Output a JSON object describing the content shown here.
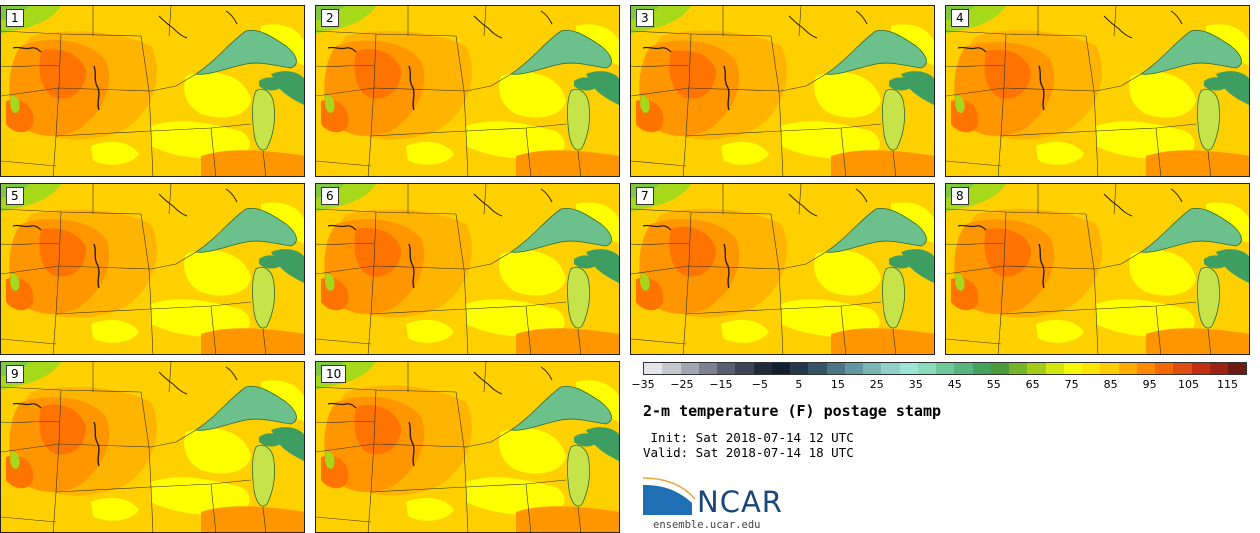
{
  "panels": [
    {
      "label": "1"
    },
    {
      "label": "2"
    },
    {
      "label": "3"
    },
    {
      "label": "4"
    },
    {
      "label": "5"
    },
    {
      "label": "6"
    },
    {
      "label": "7"
    },
    {
      "label": "8"
    },
    {
      "label": "9"
    },
    {
      "label": "10"
    }
  ],
  "colorbar": {
    "ticks": [
      "−35",
      "−25",
      "−15",
      "−5",
      "5",
      "15",
      "25",
      "35",
      "45",
      "55",
      "65",
      "75",
      "85",
      "95",
      "105",
      "115"
    ],
    "colors": [
      "#e6e6ea",
      "#c7c9d1",
      "#a2a6b3",
      "#7c8294",
      "#585f73",
      "#3c4457",
      "#1f2a3b",
      "#102031",
      "#24384c",
      "#355468",
      "#4b7688",
      "#6297a2",
      "#7bb5b6",
      "#93d0cb",
      "#9de3d8",
      "#88dcbc",
      "#6ec99a",
      "#55b77e",
      "#44a25f",
      "#4c9b3a",
      "#76b42a",
      "#a3cc17",
      "#d4e810",
      "#f7f70a",
      "#fde503",
      "#ffcc00",
      "#ffae00",
      "#fd8a00",
      "#f36a05",
      "#e04b10",
      "#c32f12",
      "#9d2212",
      "#6e1a10"
    ],
    "range": [
      -35,
      120
    ]
  },
  "title": "2-m temperature (F) postage stamp",
  "init": " Init: Sat 2018-07-14 12 UTC",
  "valid": "Valid: Sat 2018-07-14 18 UTC",
  "logo": {
    "text": "NCAR",
    "site": "ensemble.ucar.edu",
    "color": "#19477a"
  },
  "palette": {
    "yellow": "#ffff00",
    "gold": "#ffd000",
    "amber": "#ffb400",
    "orange": "#ff9600",
    "deep_orange": "#ff7400",
    "lime": "#a6d91a",
    "lake_green": "#6cc08c",
    "lake_dark": "#3e9e62",
    "border": "#333333"
  }
}
